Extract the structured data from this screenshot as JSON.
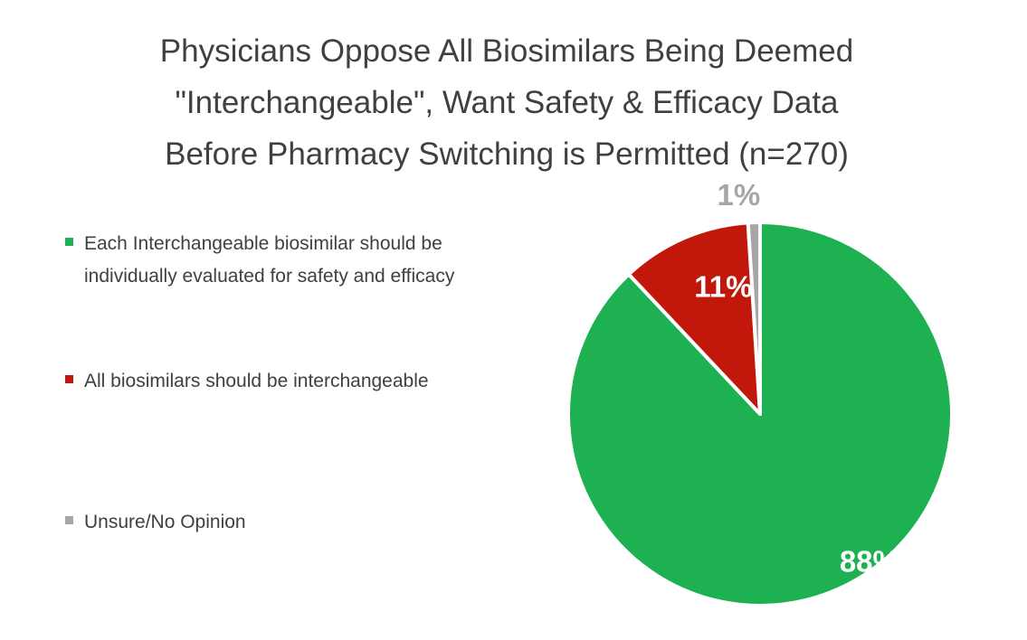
{
  "chart_data": {
    "type": "pie",
    "title_lines": [
      "Physicians Oppose All Biosimilars Being Deemed",
      "\"Interchangeable\", Want Safety & Efficacy Data",
      "Before Pharmacy Switching is Permitted (n=270)"
    ],
    "slices": [
      {
        "label": "Each Interchangeable biosimilar should be individually evaluated for safety and efficacy",
        "value": 88,
        "data_label": "88%",
        "color": "#1DB152",
        "label_color": "#ffffff"
      },
      {
        "label": "All biosimilars should be interchangeable",
        "value": 11,
        "data_label": "11%",
        "color": "#C2180C",
        "label_color": "#ffffff"
      },
      {
        "label": "Unsure/No Opinion",
        "value": 1,
        "data_label": "1%",
        "color": "#A6A6A6",
        "label_color": "#A6A6A6"
      }
    ],
    "legend_position": "left",
    "start_angle": "12 o'clock, clockwise"
  }
}
